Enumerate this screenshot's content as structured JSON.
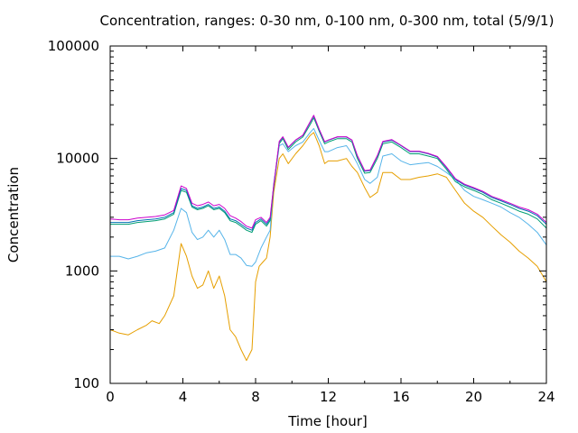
{
  "chart_data": {
    "type": "line",
    "title": "Concentration, ranges: 0-30 nm, 0-100 nm, 0-300 nm, total (5/9/1)",
    "xlabel": "Time [hour]",
    "ylabel": "Concentration",
    "xlim": [
      0,
      24
    ],
    "ylim": [
      100,
      100000
    ],
    "yscale": "log",
    "grid": false,
    "legend": "none",
    "x_ticks": [
      "0",
      "4",
      "8",
      "12",
      "16",
      "20",
      "24"
    ],
    "y_ticks": [
      "100",
      "1000",
      "10000",
      "100000"
    ],
    "series": [
      {
        "color": "#E69F00",
        "x": [
          0,
          0.5,
          1,
          1.5,
          2,
          2.3,
          2.7,
          3,
          3.5,
          3.9,
          4.2,
          4.5,
          4.8,
          5.1,
          5.4,
          5.7,
          6,
          6.3,
          6.6,
          6.9,
          7.2,
          7.5,
          7.8,
          8,
          8.2,
          8.4,
          8.6,
          8.8,
          9,
          9.3,
          9.5,
          9.8,
          10.2,
          10.6,
          11,
          11.2,
          11.5,
          11.8,
          12,
          12.5,
          13,
          13.3,
          13.6,
          14,
          14.3,
          14.7,
          15,
          15.5,
          16,
          16.5,
          17,
          17.5,
          18,
          18.5,
          19,
          19.5,
          20,
          20.5,
          21,
          21.5,
          22,
          22.5,
          23,
          23.5,
          24
        ],
        "values": [
          300,
          280,
          270,
          300,
          330,
          360,
          340,
          400,
          600,
          1750,
          1350,
          900,
          700,
          750,
          1000,
          700,
          900,
          600,
          300,
          260,
          200,
          160,
          200,
          800,
          1100,
          1200,
          1300,
          2000,
          5000,
          10000,
          11000,
          9000,
          11000,
          13000,
          16000,
          17000,
          13000,
          9000,
          9500,
          9500,
          10000,
          8500,
          7500,
          5500,
          4500,
          5000,
          7500,
          7500,
          6500,
          6500,
          6800,
          7000,
          7300,
          6800,
          5200,
          4000,
          3400,
          3000,
          2500,
          2100,
          1800,
          1500,
          1300,
          1100,
          800
        ]
      },
      {
        "color": "#56B4E9",
        "x": [
          0,
          0.5,
          1,
          1.5,
          2,
          2.5,
          3,
          3.5,
          3.9,
          4.2,
          4.5,
          4.8,
          5.1,
          5.4,
          5.7,
          6,
          6.3,
          6.6,
          6.9,
          7.2,
          7.5,
          7.8,
          8,
          8.3,
          8.6,
          8.8,
          9,
          9.3,
          9.5,
          9.8,
          10.2,
          10.6,
          11,
          11.2,
          11.5,
          11.8,
          12,
          12.5,
          13,
          13.3,
          13.6,
          14,
          14.3,
          14.7,
          15,
          15.5,
          16,
          16.5,
          17,
          17.5,
          18,
          18.5,
          19,
          19.5,
          20,
          20.5,
          21,
          21.5,
          22,
          22.5,
          23,
          23.5,
          24
        ],
        "values": [
          1350,
          1350,
          1280,
          1350,
          1450,
          1500,
          1600,
          2300,
          3600,
          3300,
          2200,
          1900,
          2000,
          2300,
          2000,
          2300,
          1900,
          1400,
          1400,
          1300,
          1120,
          1100,
          1200,
          1600,
          2000,
          2300,
          6000,
          13000,
          13500,
          11500,
          13000,
          14000,
          17000,
          18500,
          14500,
          11500,
          11500,
          12500,
          13000,
          11000,
          9000,
          6500,
          6000,
          6800,
          10500,
          11000,
          9500,
          8800,
          9000,
          9200,
          8500,
          7500,
          6500,
          5200,
          4600,
          4300,
          4000,
          3700,
          3300,
          3000,
          2600,
          2200,
          1700
        ]
      },
      {
        "color": "#009E73",
        "x": [
          0,
          0.5,
          1,
          1.5,
          2,
          2.5,
          3,
          3.5,
          3.9,
          4.2,
          4.5,
          4.8,
          5.1,
          5.4,
          5.7,
          6,
          6.3,
          6.6,
          6.9,
          7.2,
          7.5,
          7.8,
          8,
          8.3,
          8.6,
          8.8,
          9,
          9.3,
          9.5,
          9.8,
          10.2,
          10.6,
          11,
          11.2,
          11.5,
          11.8,
          12,
          12.5,
          13,
          13.3,
          13.6,
          14,
          14.3,
          14.7,
          15,
          15.5,
          16,
          16.5,
          17,
          17.5,
          18,
          18.5,
          19,
          19.5,
          20,
          20.5,
          21,
          21.5,
          22,
          22.5,
          23,
          23.5,
          24
        ],
        "values": [
          2600,
          2600,
          2600,
          2700,
          2750,
          2800,
          2900,
          3200,
          5200,
          5000,
          3700,
          3500,
          3600,
          3800,
          3500,
          3600,
          3300,
          2800,
          2700,
          2500,
          2300,
          2200,
          2600,
          2800,
          2500,
          2800,
          5500,
          13500,
          15000,
          12000,
          14000,
          15500,
          20000,
          23000,
          17500,
          13500,
          14000,
          15000,
          15000,
          14000,
          10000,
          7400,
          7500,
          10000,
          13500,
          14000,
          12500,
          11000,
          11000,
          10500,
          10000,
          8000,
          6200,
          5600,
          5200,
          4800,
          4300,
          4000,
          3700,
          3400,
          3200,
          2900,
          2400
        ]
      },
      {
        "color": "#0072B2",
        "x": [
          0,
          0.5,
          1,
          1.5,
          2,
          2.5,
          3,
          3.5,
          3.9,
          4.2,
          4.5,
          4.8,
          5.1,
          5.4,
          5.7,
          6,
          6.3,
          6.6,
          6.9,
          7.2,
          7.5,
          7.8,
          8,
          8.3,
          8.6,
          8.8,
          9,
          9.3,
          9.5,
          9.8,
          10.2,
          10.6,
          11,
          11.2,
          11.5,
          11.8,
          12,
          12.5,
          13,
          13.3,
          13.6,
          14,
          14.3,
          14.7,
          15,
          15.5,
          16,
          16.5,
          17,
          17.5,
          18,
          18.5,
          19,
          19.5,
          20,
          20.5,
          21,
          21.5,
          22,
          22.5,
          23,
          23.5,
          24
        ],
        "values": [
          2700,
          2700,
          2700,
          2800,
          2850,
          2900,
          3000,
          3300,
          5400,
          5200,
          3800,
          3600,
          3700,
          3900,
          3600,
          3700,
          3400,
          2900,
          2800,
          2600,
          2400,
          2300,
          2700,
          2900,
          2600,
          2900,
          5700,
          14000,
          15500,
          12500,
          14500,
          16000,
          21000,
          24000,
          18000,
          14000,
          14500,
          15500,
          15500,
          14500,
          10500,
          7700,
          7800,
          10500,
          14000,
          14500,
          13000,
          11500,
          11500,
          11000,
          10300,
          8300,
          6500,
          5800,
          5400,
          5000,
          4500,
          4200,
          3900,
          3600,
          3400,
          3100,
          2600
        ]
      },
      {
        "color": "#CC00CC",
        "x": [
          0,
          0.5,
          1,
          1.5,
          2,
          2.5,
          3,
          3.5,
          3.9,
          4.2,
          4.5,
          4.8,
          5.1,
          5.4,
          5.7,
          6,
          6.3,
          6.6,
          6.9,
          7.2,
          7.5,
          7.8,
          8,
          8.3,
          8.6,
          8.8,
          9,
          9.3,
          9.5,
          9.8,
          10.2,
          10.6,
          11,
          11.2,
          11.5,
          11.8,
          12,
          12.5,
          13,
          13.3,
          13.6,
          14,
          14.3,
          14.7,
          15,
          15.5,
          16,
          16.5,
          17,
          17.5,
          18,
          18.5,
          19,
          19.5,
          20,
          20.5,
          21,
          21.5,
          22,
          22.5,
          23,
          23.5,
          24
        ],
        "values": [
          2900,
          2850,
          2850,
          2950,
          3000,
          3050,
          3150,
          3450,
          5700,
          5400,
          4000,
          3800,
          3900,
          4100,
          3800,
          3900,
          3600,
          3100,
          2950,
          2750,
          2500,
          2400,
          2850,
          3000,
          2700,
          3000,
          5800,
          14200,
          15600,
          12600,
          14600,
          16100,
          21200,
          24200,
          18200,
          14100,
          14600,
          15600,
          15600,
          14600,
          10600,
          7800,
          7900,
          10600,
          14200,
          14700,
          13100,
          11600,
          11600,
          11100,
          10400,
          8400,
          6600,
          5900,
          5500,
          5100,
          4600,
          4300,
          4000,
          3700,
          3500,
          3200,
          2700
        ]
      }
    ]
  }
}
